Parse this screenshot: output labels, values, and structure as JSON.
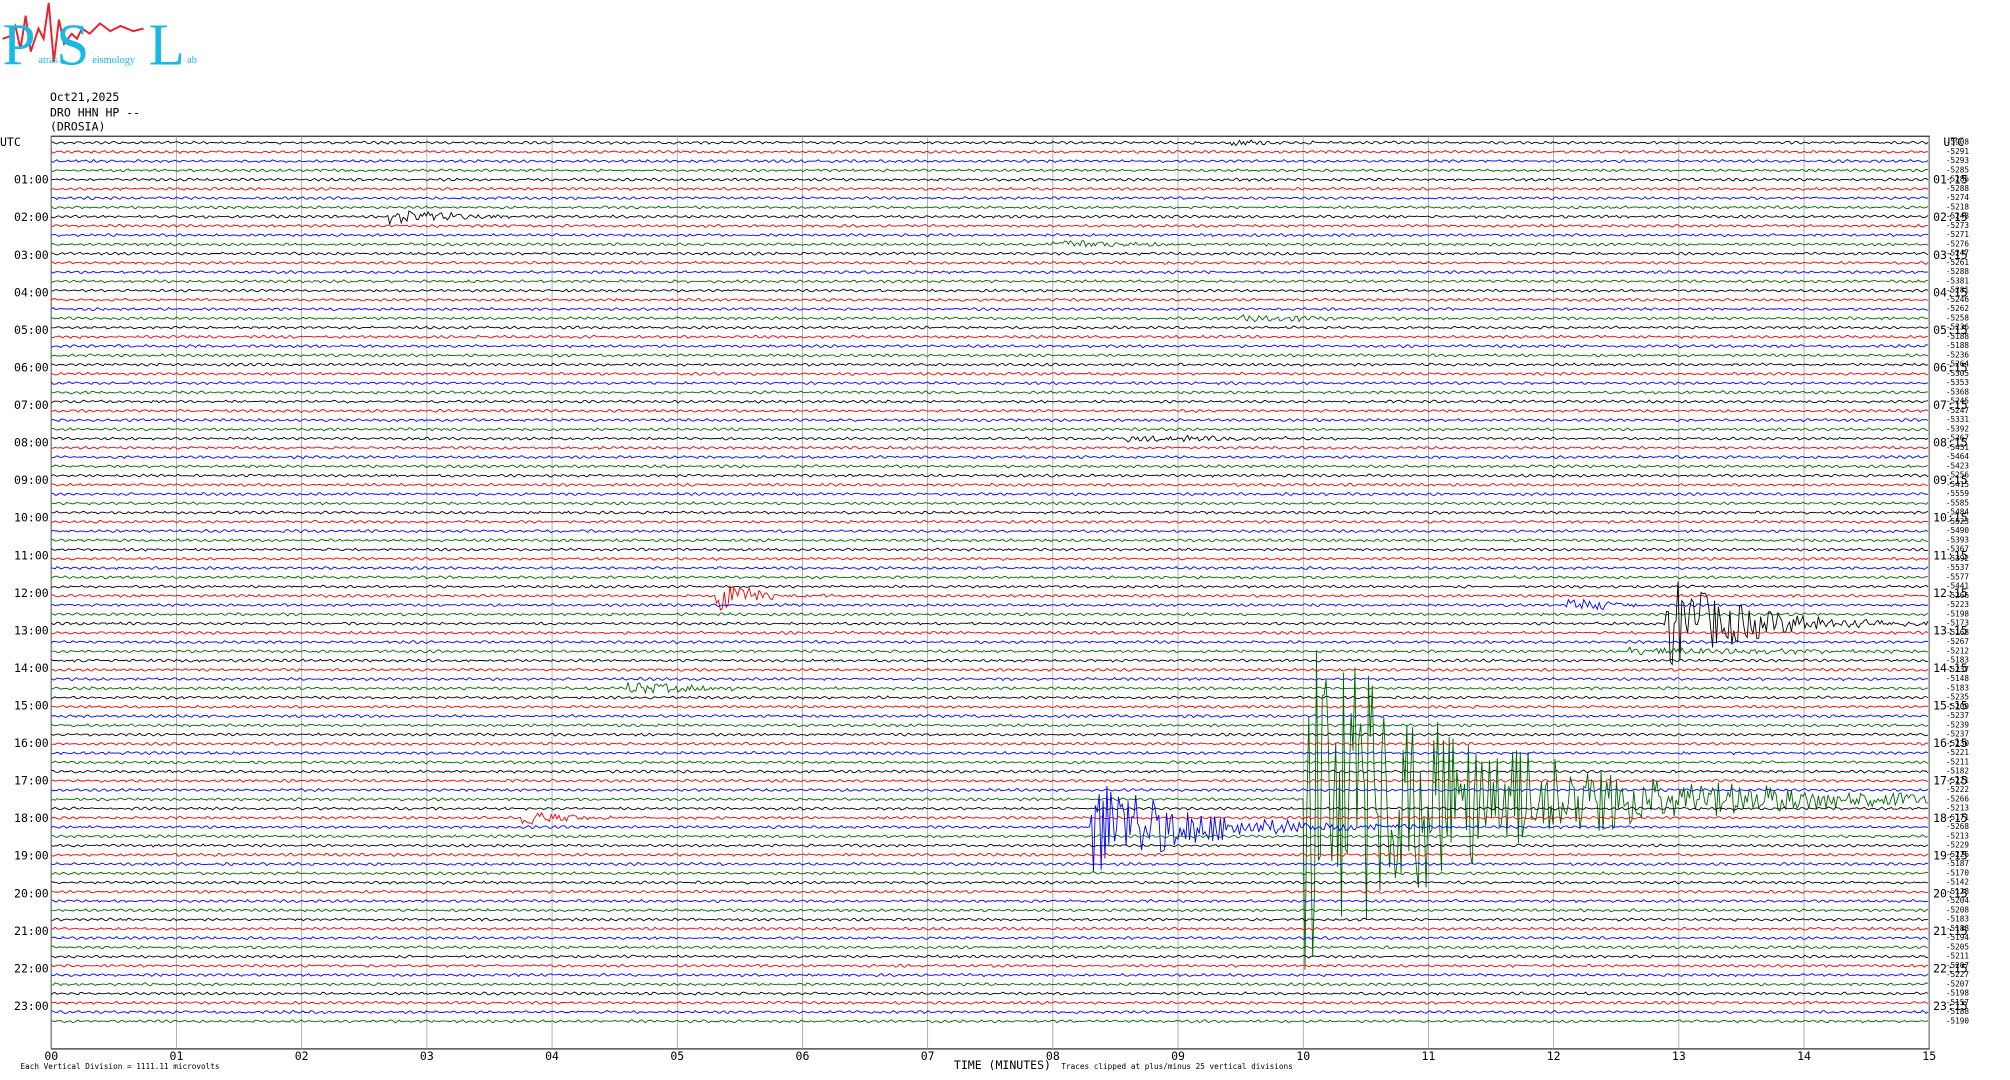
{
  "logo": {
    "initials": [
      "P",
      "S",
      "L"
    ],
    "words": [
      "atras",
      "eismology",
      "ab"
    ]
  },
  "header": {
    "date": "Oct21,2025",
    "station": "DRO HHN HP --",
    "location": "(DROSIA)"
  },
  "left_axis": {
    "title": "UTC",
    "labels": [
      "01:00",
      "02:00",
      "03:00",
      "04:00",
      "05:00",
      "06:00",
      "07:00",
      "08:00",
      "09:00",
      "10:00",
      "11:00",
      "12:00",
      "13:00",
      "14:00",
      "15:00",
      "16:00",
      "17:00",
      "18:00",
      "19:00",
      "20:00",
      "21:00",
      "22:00",
      "23:00"
    ]
  },
  "right_axis": {
    "title": "UTC",
    "labels": [
      "01:15",
      "02:15",
      "03:15",
      "04:15",
      "05:15",
      "06:15",
      "07:15",
      "08:15",
      "09:15",
      "10:15",
      "11:15",
      "12:15",
      "13:15",
      "14:15",
      "15:15",
      "16:15",
      "17:15",
      "18:15",
      "19:15",
      "20:15",
      "21:15",
      "22:15",
      "23:15"
    ]
  },
  "trace_offsets": [
    -5908,
    -5291,
    -5293,
    -5285,
    -5286,
    -5288,
    -5274,
    -5218,
    -5248,
    -5273,
    -5271,
    -5276,
    -5247,
    -5261,
    -5288,
    -5381,
    -5281,
    -5246,
    -5262,
    -5258,
    -5236,
    -5188,
    -5188,
    -5236,
    -5264,
    -5305,
    -5353,
    -5368,
    -5245,
    -5247,
    -5331,
    -5392,
    -5367,
    -5451,
    -5464,
    -5423,
    -5256,
    -5415,
    -5559,
    -5585,
    -5484,
    -5523,
    -5490,
    -5393,
    -5367,
    -5392,
    -5537,
    -5577,
    -5441,
    -5266,
    -5223,
    -5198,
    -5173,
    -5168,
    -5267,
    -5212,
    -5183,
    -5237,
    -5148,
    -5183,
    -5235,
    -5209,
    -5237,
    -5239,
    -5237,
    -5230,
    -5221,
    -5211,
    -5182,
    -5221,
    -5222,
    -5266,
    -5213,
    -5171,
    -5268,
    -5213,
    -5229,
    -5226,
    -5187,
    -5170,
    -5142,
    -5128,
    -5204,
    -5208,
    -5183,
    -5188,
    -5194,
    -5205,
    -5211,
    -5207,
    -5227,
    -5207,
    -5198,
    -5157,
    -5188,
    -5190
  ],
  "x_axis": {
    "title": "TIME (MINUTES)",
    "labels": [
      "00",
      "01",
      "02",
      "03",
      "04",
      "05",
      "06",
      "07",
      "08",
      "09",
      "10",
      "11",
      "12",
      "13",
      "14",
      "15"
    ]
  },
  "footer": {
    "scale": "Each Vertical Division = 1111.11 microvolts",
    "clip": "Traces clipped at plus/minus 25 vertical divisions"
  }
}
